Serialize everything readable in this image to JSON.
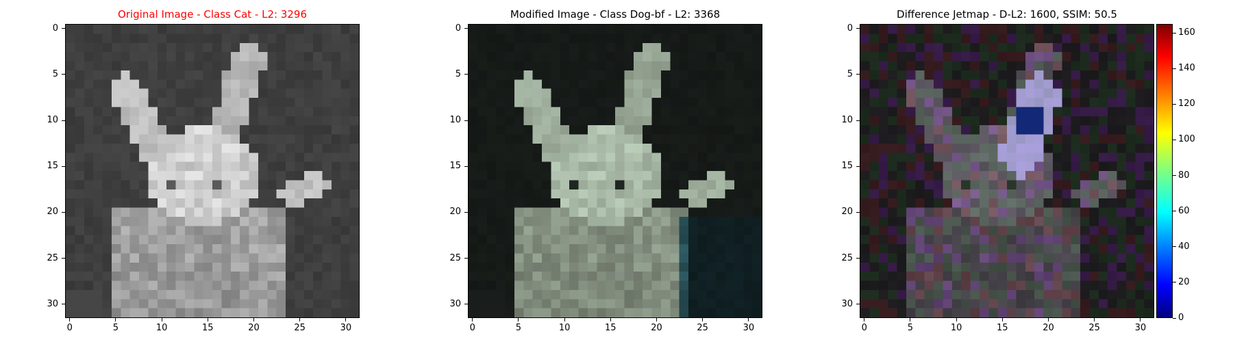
{
  "panels": [
    {
      "title": "Original Image - Class Cat - L2: 3296",
      "title_color": "#ff0000",
      "tint": "gray",
      "x_ticks": [
        "0",
        "5",
        "10",
        "15",
        "20",
        "25",
        "30"
      ],
      "y_ticks": [
        "0",
        "5",
        "10",
        "15",
        "20",
        "25",
        "30"
      ]
    },
    {
      "title": "Modified Image - Class Dog-bf - L2: 3368",
      "title_color": "#000000",
      "tint": "teal",
      "x_ticks": [
        "0",
        "5",
        "10",
        "15",
        "20",
        "25",
        "30"
      ],
      "y_ticks": [
        "0",
        "5",
        "10",
        "15",
        "20",
        "25",
        "30"
      ]
    },
    {
      "title": "Difference Jetmap - D-L2: 1600, SSIM: 50.5",
      "title_color": "#000000",
      "tint": "mixed",
      "x_ticks": [
        "0",
        "5",
        "10",
        "15",
        "20",
        "25",
        "30"
      ],
      "y_ticks": [
        "0",
        "5",
        "10",
        "15",
        "20",
        "25",
        "30"
      ]
    }
  ],
  "colorbar": {
    "ticks": [
      "0",
      "20",
      "40",
      "60",
      "80",
      "100",
      "120",
      "140",
      "160"
    ],
    "range": [
      0,
      165
    ],
    "colormap": "jet"
  }
}
